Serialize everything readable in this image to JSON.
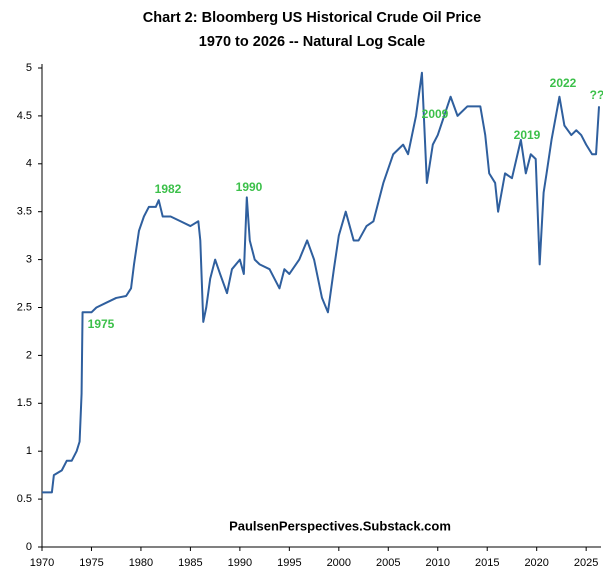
{
  "chart_data": {
    "type": "line",
    "title": "Chart 2: Bloomberg US Historical Crude Oil Price",
    "subtitle": "1970 to 2026 -- Natural Log Scale",
    "credit": "PaulsenPerspectives.Substack.com",
    "color": "#2f5f9e",
    "xlim": [
      1970,
      2026.5
    ],
    "xticks": [
      1970,
      1975,
      1980,
      1985,
      1990,
      1995,
      2000,
      2005,
      2010,
      2015,
      2020,
      2025
    ],
    "ylim": [
      0,
      5
    ],
    "yticks": [
      0,
      0.5,
      1,
      1.5,
      2,
      2.5,
      3,
      3.5,
      4,
      4.5,
      5
    ],
    "grid": false,
    "annotations": [
      "1975",
      "1982",
      "1990",
      "2009",
      "2019",
      "2022",
      "??"
    ],
    "x": [
      1970,
      1971,
      1971.2,
      1972,
      1972.5,
      1973,
      1973.5,
      1973.8,
      1974.0,
      1974.1,
      1975,
      1975.5,
      1976.5,
      1977.5,
      1978.5,
      1979,
      1979.3,
      1979.8,
      1980.3,
      1980.8,
      1981.5,
      1981.8,
      1982.2,
      1983,
      1984,
      1985,
      1985.8,
      1986.0,
      1986.3,
      1986.6,
      1987,
      1987.5,
      1988,
      1988.7,
      1989.2,
      1990.0,
      1990.4,
      1990.7,
      1991.0,
      1991.5,
      1992,
      1993,
      1994,
      1994.5,
      1995,
      1996,
      1996.8,
      1997.5,
      1998.3,
      1998.9,
      1999.5,
      2000,
      2000.7,
      2001.5,
      2002,
      2002.8,
      2003.5,
      2004.5,
      2005.5,
      2006.5,
      2007,
      2007.8,
      2008.4,
      2008.9,
      2009.5,
      2010,
      2011.3,
      2012,
      2013,
      2014.3,
      2014.8,
      2015.2,
      2015.8,
      2016.1,
      2016.8,
      2017.5,
      2018.4,
      2018.9,
      2019.4,
      2019.9,
      2020.3,
      2020.7,
      2021.0,
      2021.5,
      2022.3,
      2022.8,
      2023.5,
      2024,
      2024.5,
      2025,
      2025.6,
      2026.0,
      2026.3
    ],
    "values": [
      0.57,
      0.57,
      0.75,
      0.8,
      0.9,
      0.9,
      1.0,
      1.1,
      1.6,
      2.45,
      2.45,
      2.5,
      2.55,
      2.6,
      2.62,
      2.7,
      2.95,
      3.3,
      3.45,
      3.55,
      3.55,
      3.62,
      3.45,
      3.45,
      3.4,
      3.35,
      3.4,
      3.2,
      2.35,
      2.5,
      2.8,
      3.0,
      2.85,
      2.65,
      2.9,
      3.0,
      2.85,
      3.65,
      3.2,
      3.0,
      2.95,
      2.9,
      2.7,
      2.9,
      2.85,
      3.0,
      3.2,
      3.0,
      2.6,
      2.45,
      2.9,
      3.25,
      3.5,
      3.2,
      3.2,
      3.35,
      3.4,
      3.8,
      4.1,
      4.2,
      4.1,
      4.5,
      4.95,
      3.8,
      4.2,
      4.3,
      4.7,
      4.5,
      4.6,
      4.6,
      4.3,
      3.9,
      3.8,
      3.5,
      3.9,
      3.85,
      4.25,
      3.9,
      4.1,
      4.05,
      2.95,
      3.7,
      3.9,
      4.25,
      4.7,
      4.4,
      4.3,
      4.35,
      4.3,
      4.2,
      4.1,
      4.1,
      4.6
    ]
  }
}
